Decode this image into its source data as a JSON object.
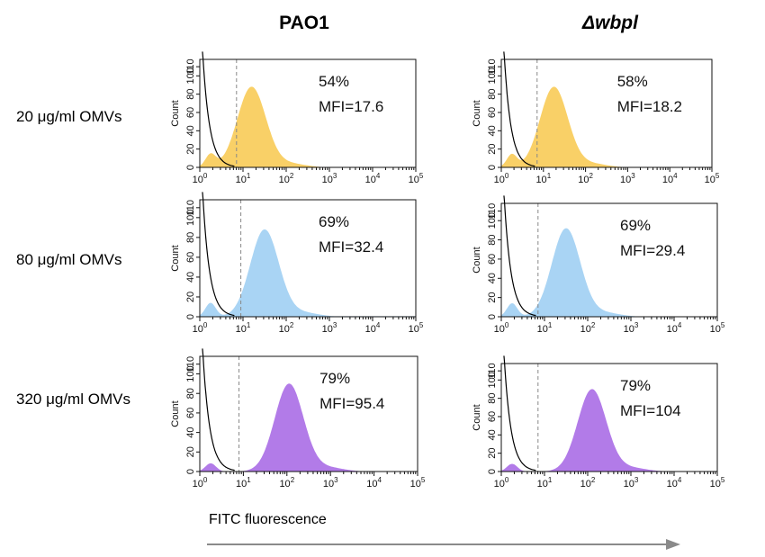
{
  "columns": {
    "left": "PAO1",
    "right": "Δwbpl"
  },
  "rows": [
    "20 μg/ml OMVs",
    "80 μg/ml OMVs",
    "320 μg/ml OMVs"
  ],
  "x_axis_label": "FITC fluorescence",
  "colors": {
    "row1": "#f9d067",
    "row2": "#a9d4f4",
    "row3": "#b27be8",
    "gate_line": "#888888",
    "control_line": "#000000"
  },
  "chart_data": [
    {
      "type": "area",
      "column": "PAO1",
      "row": "20 μg/ml OMVs",
      "percent_text": "54%",
      "mfi_text": "MFI=17.6",
      "percent": 54,
      "mfi": 17.6,
      "ylabel": "Count",
      "yticks": [
        0,
        20,
        40,
        60,
        80,
        100,
        110
      ],
      "xscale": "log",
      "xlim": [
        1,
        100000
      ],
      "peak_log10": 1.2,
      "peak_count": 88,
      "gate_log10": 0.85
    },
    {
      "type": "area",
      "column": "Δwbpl",
      "row": "20 μg/ml OMVs",
      "percent_text": "58%",
      "mfi_text": "MFI=18.2",
      "percent": 58,
      "mfi": 18.2,
      "ylabel": "Count",
      "yticks": [
        0,
        20,
        40,
        60,
        80,
        100,
        110
      ],
      "xscale": "log",
      "xlim": [
        1,
        100000
      ],
      "peak_log10": 1.25,
      "peak_count": 88,
      "gate_log10": 0.85
    },
    {
      "type": "area",
      "column": "PAO1",
      "row": "80 μg/ml OMVs",
      "percent_text": "69%",
      "mfi_text": "MFI=32.4",
      "percent": 69,
      "mfi": 32.4,
      "ylabel": "Count",
      "yticks": [
        0,
        20,
        40,
        60,
        80,
        100,
        110
      ],
      "xscale": "log",
      "xlim": [
        1,
        100000
      ],
      "peak_log10": 1.5,
      "peak_count": 88,
      "gate_log10": 0.95
    },
    {
      "type": "area",
      "column": "Δwbpl",
      "row": "80 μg/ml OMVs",
      "percent_text": "69%",
      "mfi_text": "MFI=29.4",
      "percent": 69,
      "mfi": 29.4,
      "ylabel": "Count",
      "yticks": [
        0,
        20,
        40,
        60,
        80,
        100,
        110
      ],
      "xscale": "log",
      "xlim": [
        1,
        100000
      ],
      "peak_log10": 1.5,
      "peak_count": 92,
      "gate_log10": 0.85
    },
    {
      "type": "area",
      "column": "PAO1",
      "row": "320 μg/ml OMVs",
      "percent_text": "79%",
      "mfi_text": "MFI=95.4",
      "percent": 79,
      "mfi": 95.4,
      "ylabel": "Count",
      "yticks": [
        0,
        20,
        40,
        60,
        80,
        100,
        110
      ],
      "xscale": "log",
      "xlim": [
        1,
        100000
      ],
      "peak_log10": 2.05,
      "peak_count": 90,
      "gate_log10": 0.9
    },
    {
      "type": "area",
      "column": "Δwbpl",
      "row": "320 μg/ml OMVs",
      "percent_text": "79%",
      "mfi_text": "MFI=104",
      "percent": 79,
      "mfi": 104,
      "ylabel": "Count",
      "yticks": [
        0,
        20,
        40,
        60,
        80,
        100,
        110
      ],
      "xscale": "log",
      "xlim": [
        1,
        100000
      ],
      "peak_log10": 2.1,
      "peak_count": 90,
      "gate_log10": 0.85
    }
  ]
}
